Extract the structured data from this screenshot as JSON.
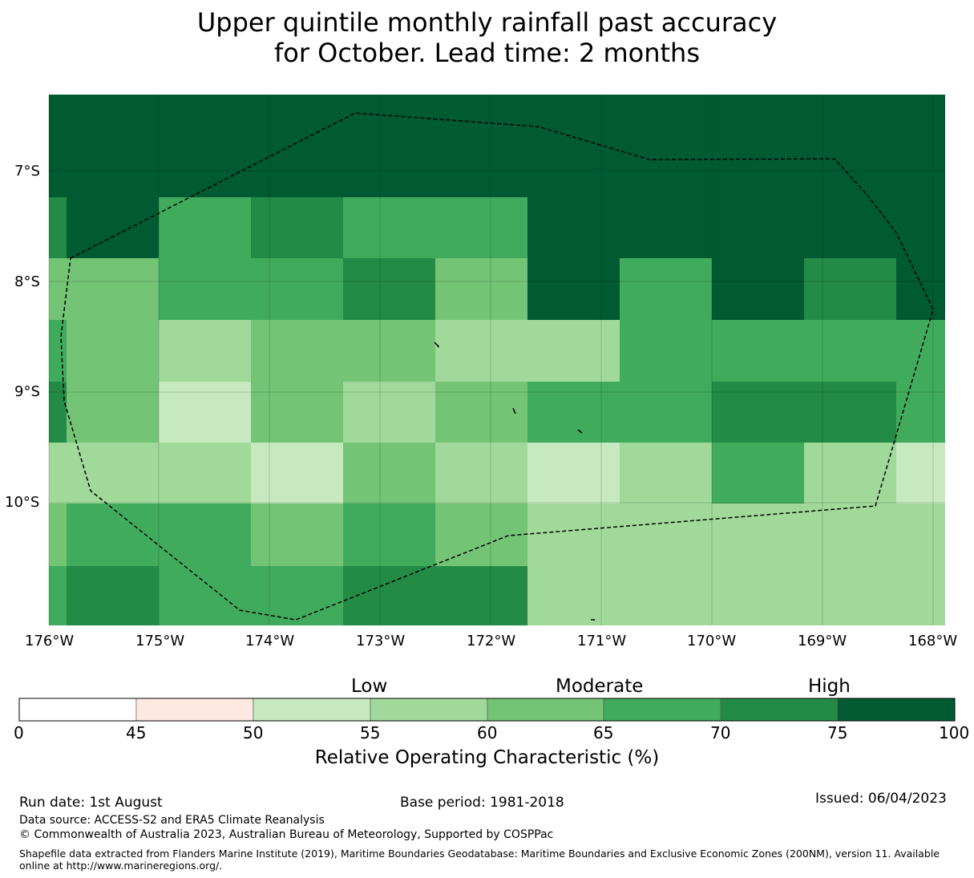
{
  "title": {
    "line1": "Upper quintile monthly rainfall past accuracy",
    "line2": "for October. Lead time: 2 months"
  },
  "colors": {
    "below_45": "#ffffff",
    "45_50": "#fee9e1",
    "50_55": "#c7e9c0",
    "55_60": "#a1d99b",
    "60_65": "#74c476",
    "65_70": "#41ab5d",
    "70_75": "#238b45",
    "75_100": "#005a32"
  },
  "map": {
    "lat_labels": [
      "7°S",
      "8°S",
      "9°S",
      "10°S"
    ],
    "lon_labels": [
      "176°W",
      "175°W",
      "174°W",
      "173°W",
      "172°W",
      "171°W",
      "170°W",
      "169°W",
      "168°W"
    ],
    "grid_cells_roc_class": [
      [
        "75_100",
        "75_100",
        "75_100",
        "75_100",
        "75_100",
        "75_100",
        "75_100",
        "75_100",
        "75_100",
        "75_100",
        "75_100"
      ],
      [
        "70_75",
        "75_100",
        "65_70",
        "70_75",
        "65_70",
        "65_70",
        "75_100",
        "75_100",
        "75_100",
        "75_100",
        "75_100"
      ],
      [
        "60_65",
        "60_65",
        "65_70",
        "65_70",
        "70_75",
        "60_65",
        "75_100",
        "65_70",
        "75_100",
        "70_75",
        "75_100"
      ],
      [
        "65_70",
        "60_65",
        "55_60",
        "60_65",
        "60_65",
        "55_60",
        "55_60",
        "65_70",
        "65_70",
        "65_70",
        "65_70"
      ],
      [
        "70_75",
        "60_65",
        "50_55",
        "60_65",
        "55_60",
        "60_65",
        "65_70",
        "65_70",
        "70_75",
        "70_75",
        "65_70"
      ],
      [
        "55_60",
        "55_60",
        "55_60",
        "50_55",
        "60_65",
        "55_60",
        "50_55",
        "55_60",
        "65_70",
        "55_60",
        "50_55"
      ],
      [
        "60_65",
        "65_70",
        "65_70",
        "60_65",
        "65_70",
        "60_65",
        "55_60",
        "55_60",
        "55_60",
        "55_60",
        "55_60"
      ],
      [
        "65_70",
        "70_75",
        "65_70",
        "65_70",
        "70_75",
        "70_75",
        "55_60",
        "55_60",
        "55_60",
        "55_60",
        "55_60"
      ]
    ]
  },
  "colorbar": {
    "category_low": "Low",
    "category_moderate": "Moderate",
    "category_high": "High",
    "ticks": [
      "0",
      "45",
      "50",
      "55",
      "60",
      "65",
      "70",
      "75",
      "100"
    ],
    "label": "Relative Operating Characteristic (%)"
  },
  "footer": {
    "run_date": "Run date: 1st August",
    "base_period": "Base period: 1981-2018",
    "issued": "Issued: 06/04/2023",
    "data_source": "Data source: ACCESS-S2 and ERA5 Climate Reanalysis",
    "copyright": "© Commonwealth of Australia 2023, Australian Bureau of Meteorology, Supported by COSPPac",
    "shapefile": "Shapefile data extracted from Flanders Marine Institute (2019), Maritime Boundaries Geodatabase: Maritime Boundaries and Exclusive Economic Zones (200NM), version 11. Available online at http://www.marineregions.org/."
  }
}
